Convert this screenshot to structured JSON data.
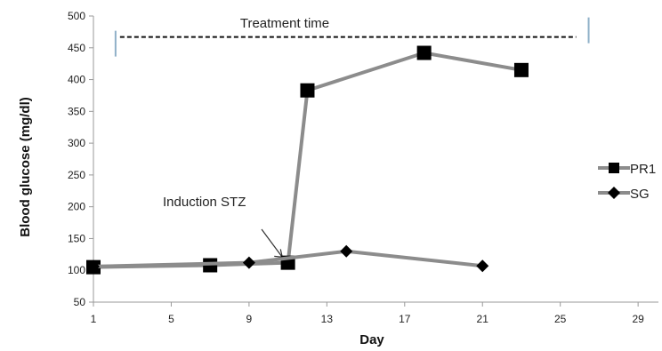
{
  "chart_data": {
    "type": "line",
    "title": "",
    "xlabel": "Day",
    "ylabel": "Blood glucose (mg/dl)",
    "xlim": [
      1,
      30
    ],
    "ylim": [
      50,
      500
    ],
    "xticks": [
      1,
      5,
      9,
      13,
      17,
      21,
      25,
      29
    ],
    "yticks": [
      50,
      100,
      150,
      200,
      250,
      300,
      350,
      400,
      450,
      500
    ],
    "grid": false,
    "legend_position": "right",
    "series": [
      {
        "name": "PR1",
        "marker": "square",
        "color": "#8c8c8c",
        "x": [
          1,
          7,
          11,
          12,
          18,
          23
        ],
        "y": [
          105,
          108,
          112,
          383,
          442,
          415
        ]
      },
      {
        "name": "SG",
        "marker": "diamond",
        "color": "#8c8c8c",
        "x": [
          1,
          9,
          14,
          21
        ],
        "y": [
          106,
          112,
          130,
          107
        ]
      }
    ],
    "annotations": [
      {
        "text": "Treatment time",
        "type": "span",
        "x_start": 2,
        "x_end": 26,
        "y": 467
      },
      {
        "text": "Induction STZ",
        "type": "arrow",
        "target_x": 10.8,
        "target_y": 118
      }
    ]
  }
}
